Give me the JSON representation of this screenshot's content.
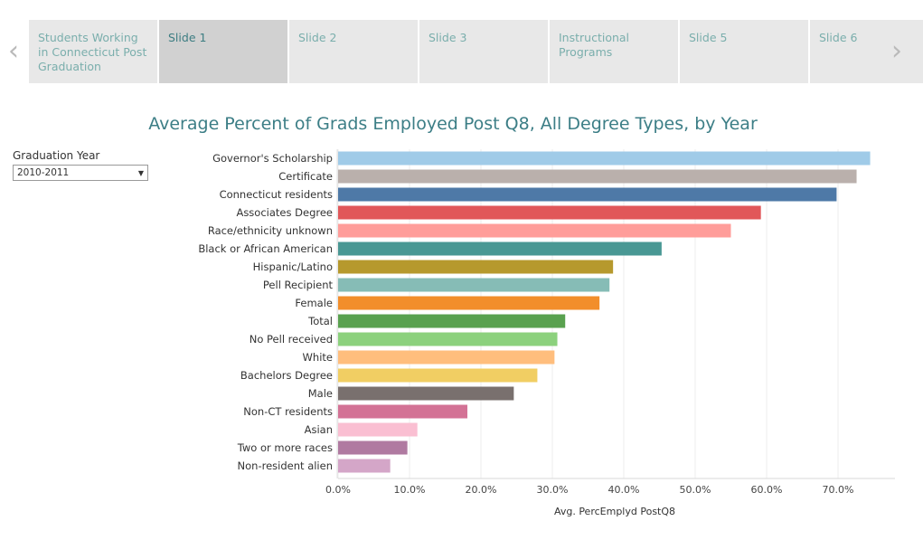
{
  "nav": {
    "prev_icon": "chevron-left-icon",
    "next_icon": "chevron-right-icon",
    "tabs": [
      {
        "label": "Students Working in Connecticut Post Graduation",
        "active": false
      },
      {
        "label": "Slide 1",
        "active": true
      },
      {
        "label": "Slide 2",
        "active": false
      },
      {
        "label": "Slide 3",
        "active": false
      },
      {
        "label": "Instructional Programs",
        "active": false
      },
      {
        "label": "Slide 5",
        "active": false
      },
      {
        "label": "Slide 6",
        "active": false
      }
    ]
  },
  "filter": {
    "label": "Graduation Year",
    "selected": "2010-2011"
  },
  "chart_data": {
    "type": "bar",
    "orientation": "horizontal",
    "title": "Average Percent of Grads Employed Post Q8, All Degree Types, by Year",
    "xlabel": "Avg. PercEmplyd PostQ8",
    "ylabel": "",
    "xlim": [
      0,
      0.78
    ],
    "ticks": [
      "0.0%",
      "10.0%",
      "20.0%",
      "30.0%",
      "40.0%",
      "50.0%",
      "60.0%",
      "70.0%"
    ],
    "grid": true,
    "categories": [
      "Governor's Scholarship",
      "Certificate",
      "Connecticut residents",
      "Associates Degree",
      "Race/ethnicity unknown",
      "Black or African American",
      "Hispanic/Latino",
      "Pell Recipient",
      "Female",
      "Total",
      "No Pell received",
      "White",
      "Bachelors Degree",
      "Male",
      "Non-CT residents",
      "Asian",
      "Two or more races",
      "Non-resident alien"
    ],
    "values": [
      0.745,
      0.726,
      0.698,
      0.592,
      0.55,
      0.453,
      0.385,
      0.38,
      0.366,
      0.318,
      0.307,
      0.303,
      0.279,
      0.246,
      0.181,
      0.111,
      0.097,
      0.073
    ],
    "colors": [
      "#a0cbe8",
      "#bab0ac",
      "#4e79a7",
      "#e15759",
      "#ff9d9a",
      "#499894",
      "#b6992d",
      "#86bcb6",
      "#f28e2b",
      "#59a14f",
      "#8cd17d",
      "#ffbe7d",
      "#f1ce63",
      "#79706e",
      "#d37295",
      "#fabfd2",
      "#b07aa1",
      "#d4a6c8"
    ]
  }
}
